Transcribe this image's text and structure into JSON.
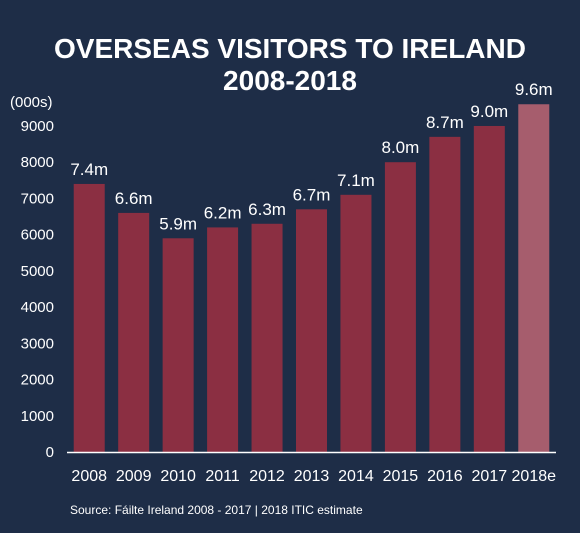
{
  "chart_data": {
    "type": "bar",
    "title_lines": [
      "OVERSEAS VISITORS TO IRELAND",
      "2008-2018"
    ],
    "ylabel": "(000s)",
    "xlabel": "",
    "categories": [
      "2008",
      "2009",
      "2010",
      "2011",
      "2012",
      "2013",
      "2014",
      "2015",
      "2016",
      "2017",
      "2018e"
    ],
    "values": [
      7400,
      6600,
      5900,
      6200,
      6300,
      6700,
      7100,
      8000,
      8700,
      9000,
      9600
    ],
    "data_labels": [
      "7.4m",
      "6.6m",
      "5.9m",
      "6.2m",
      "6.3m",
      "6.7m",
      "7.1m",
      "8.0m",
      "8.7m",
      "9.0m",
      "9.6m"
    ],
    "estimate_categories": [
      "2018e"
    ],
    "ylim": [
      0,
      9800
    ],
    "yticks": [
      0,
      1000,
      2000,
      3000,
      4000,
      5000,
      6000,
      7000,
      8000,
      9000
    ],
    "grid": false,
    "legend": "none",
    "colors": {
      "background": "#1e2d47",
      "bar": "#8b2f42",
      "bar_estimate": "#a65d6d",
      "text": "#ffffff"
    },
    "source": "Source: Fáilte Ireland 2008 - 2017  |  2018 ITIC estimate"
  }
}
